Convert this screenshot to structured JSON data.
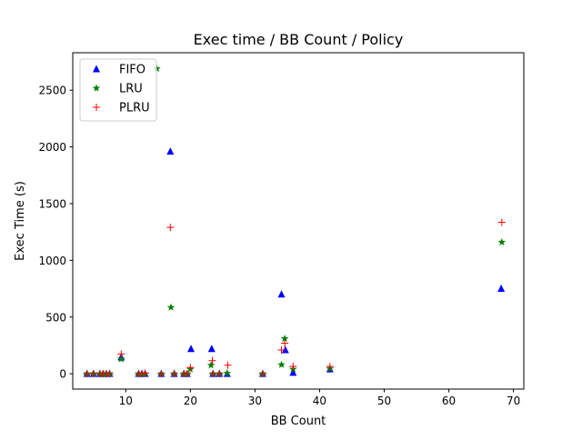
{
  "chart_data": {
    "type": "scatter",
    "title": "Exec time / BB Count / Policy",
    "xlabel": "BB Count",
    "ylabel": "Exec Time (s)",
    "xlim": [
      1.8,
      71.6
    ],
    "ylim": [
      -135,
      2830
    ],
    "xticks": [
      10,
      20,
      30,
      40,
      50,
      60,
      70
    ],
    "yticks": [
      0,
      500,
      1000,
      1500,
      2000,
      2500
    ],
    "grid": false,
    "legend_position": "upper-left",
    "series": [
      {
        "name": "FIFO",
        "marker": "triangle",
        "color": "#0000ff",
        "points": [
          [
            4,
            0
          ],
          [
            5,
            0
          ],
          [
            6,
            0
          ],
          [
            6.5,
            0
          ],
          [
            7,
            0
          ],
          [
            7.5,
            0
          ],
          [
            9.3,
            145
          ],
          [
            12,
            0
          ],
          [
            12.5,
            0
          ],
          [
            13,
            0
          ],
          [
            15.5,
            0
          ],
          [
            16.9,
            1960
          ],
          [
            17.5,
            0
          ],
          [
            19,
            0
          ],
          [
            19.5,
            0
          ],
          [
            20.1,
            220
          ],
          [
            23.3,
            220
          ],
          [
            23.5,
            0
          ],
          [
            24.5,
            0
          ],
          [
            25.7,
            0
          ],
          [
            31.2,
            0
          ],
          [
            34.1,
            700
          ],
          [
            34.7,
            210
          ],
          [
            35.9,
            10
          ],
          [
            41.6,
            40
          ],
          [
            68.1,
            750
          ]
        ]
      },
      {
        "name": "LRU",
        "marker": "star",
        "color": "#008000",
        "points": [
          [
            4,
            0
          ],
          [
            5,
            0
          ],
          [
            6,
            0
          ],
          [
            6.5,
            0
          ],
          [
            7,
            0
          ],
          [
            7.5,
            0
          ],
          [
            9.3,
            130
          ],
          [
            12,
            0
          ],
          [
            12.5,
            0
          ],
          [
            13,
            0
          ],
          [
            14.8,
            2690
          ],
          [
            15.5,
            0
          ],
          [
            17,
            585
          ],
          [
            17.5,
            0
          ],
          [
            19,
            0
          ],
          [
            19.5,
            0
          ],
          [
            20,
            40
          ],
          [
            23.2,
            75
          ],
          [
            23.5,
            0
          ],
          [
            24.5,
            0
          ],
          [
            25.7,
            5
          ],
          [
            31.2,
            0
          ],
          [
            34.1,
            80
          ],
          [
            34.6,
            310
          ],
          [
            35.9,
            40
          ],
          [
            41.6,
            45
          ],
          [
            68.2,
            1160
          ]
        ]
      },
      {
        "name": "PLRU",
        "marker": "plus",
        "color": "#ff0000",
        "points": [
          [
            4,
            0
          ],
          [
            5,
            0
          ],
          [
            6,
            0
          ],
          [
            6.5,
            0
          ],
          [
            7,
            0
          ],
          [
            7.5,
            0
          ],
          [
            9.3,
            175
          ],
          [
            12,
            0
          ],
          [
            12.5,
            0
          ],
          [
            13,
            5
          ],
          [
            15.5,
            0
          ],
          [
            16.9,
            1290
          ],
          [
            17.5,
            0
          ],
          [
            19,
            0
          ],
          [
            19.5,
            0
          ],
          [
            20,
            55
          ],
          [
            23.4,
            115
          ],
          [
            23.5,
            0
          ],
          [
            24.5,
            0
          ],
          [
            25.8,
            75
          ],
          [
            31.2,
            0
          ],
          [
            34.1,
            210
          ],
          [
            34.6,
            270
          ],
          [
            35.9,
            65
          ],
          [
            41.6,
            65
          ],
          [
            68.2,
            1335
          ]
        ]
      }
    ]
  }
}
